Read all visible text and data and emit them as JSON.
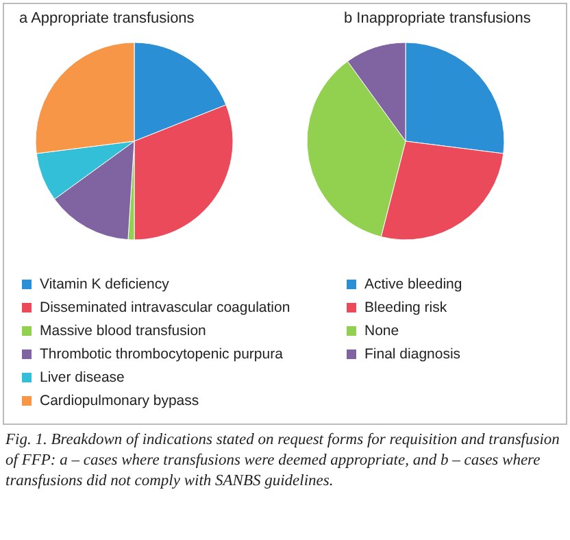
{
  "chart_data": [
    {
      "type": "pie",
      "title": "a Appropriate transfusions",
      "categories": [
        "Vitamin K deficiency",
        "Disseminated intravascular coagulation",
        "Massive blood transfusion",
        "Thrombotic thrombocytopenic purpura",
        "Liver disease",
        "Cardiopulmonary bypass"
      ],
      "values": [
        19,
        31,
        1,
        14,
        8,
        27
      ],
      "colors": [
        "#2a8fd4",
        "#ea4a5a",
        "#92d050",
        "#8064a2",
        "#33bfd8",
        "#f79646"
      ],
      "legend": "bottom",
      "annotations": [
        "Fig. 1. Breakdown of indications stated on request forms for requisition and transfusion of FFP: a – cases where transfusions were deemed appropriate, and b – cases where transfusions did not comply with SANBS guidelines."
      ]
    },
    {
      "type": "pie",
      "title": "b Inappropriate transfusions",
      "categories": [
        "Active bleeding",
        "Bleeding risk",
        "None",
        "Final diagnosis"
      ],
      "values": [
        27,
        27,
        36,
        10
      ],
      "colors": [
        "#2a8fd4",
        "#ea4a5a",
        "#92d050",
        "#8064a2"
      ],
      "legend": "bottom"
    }
  ]
}
